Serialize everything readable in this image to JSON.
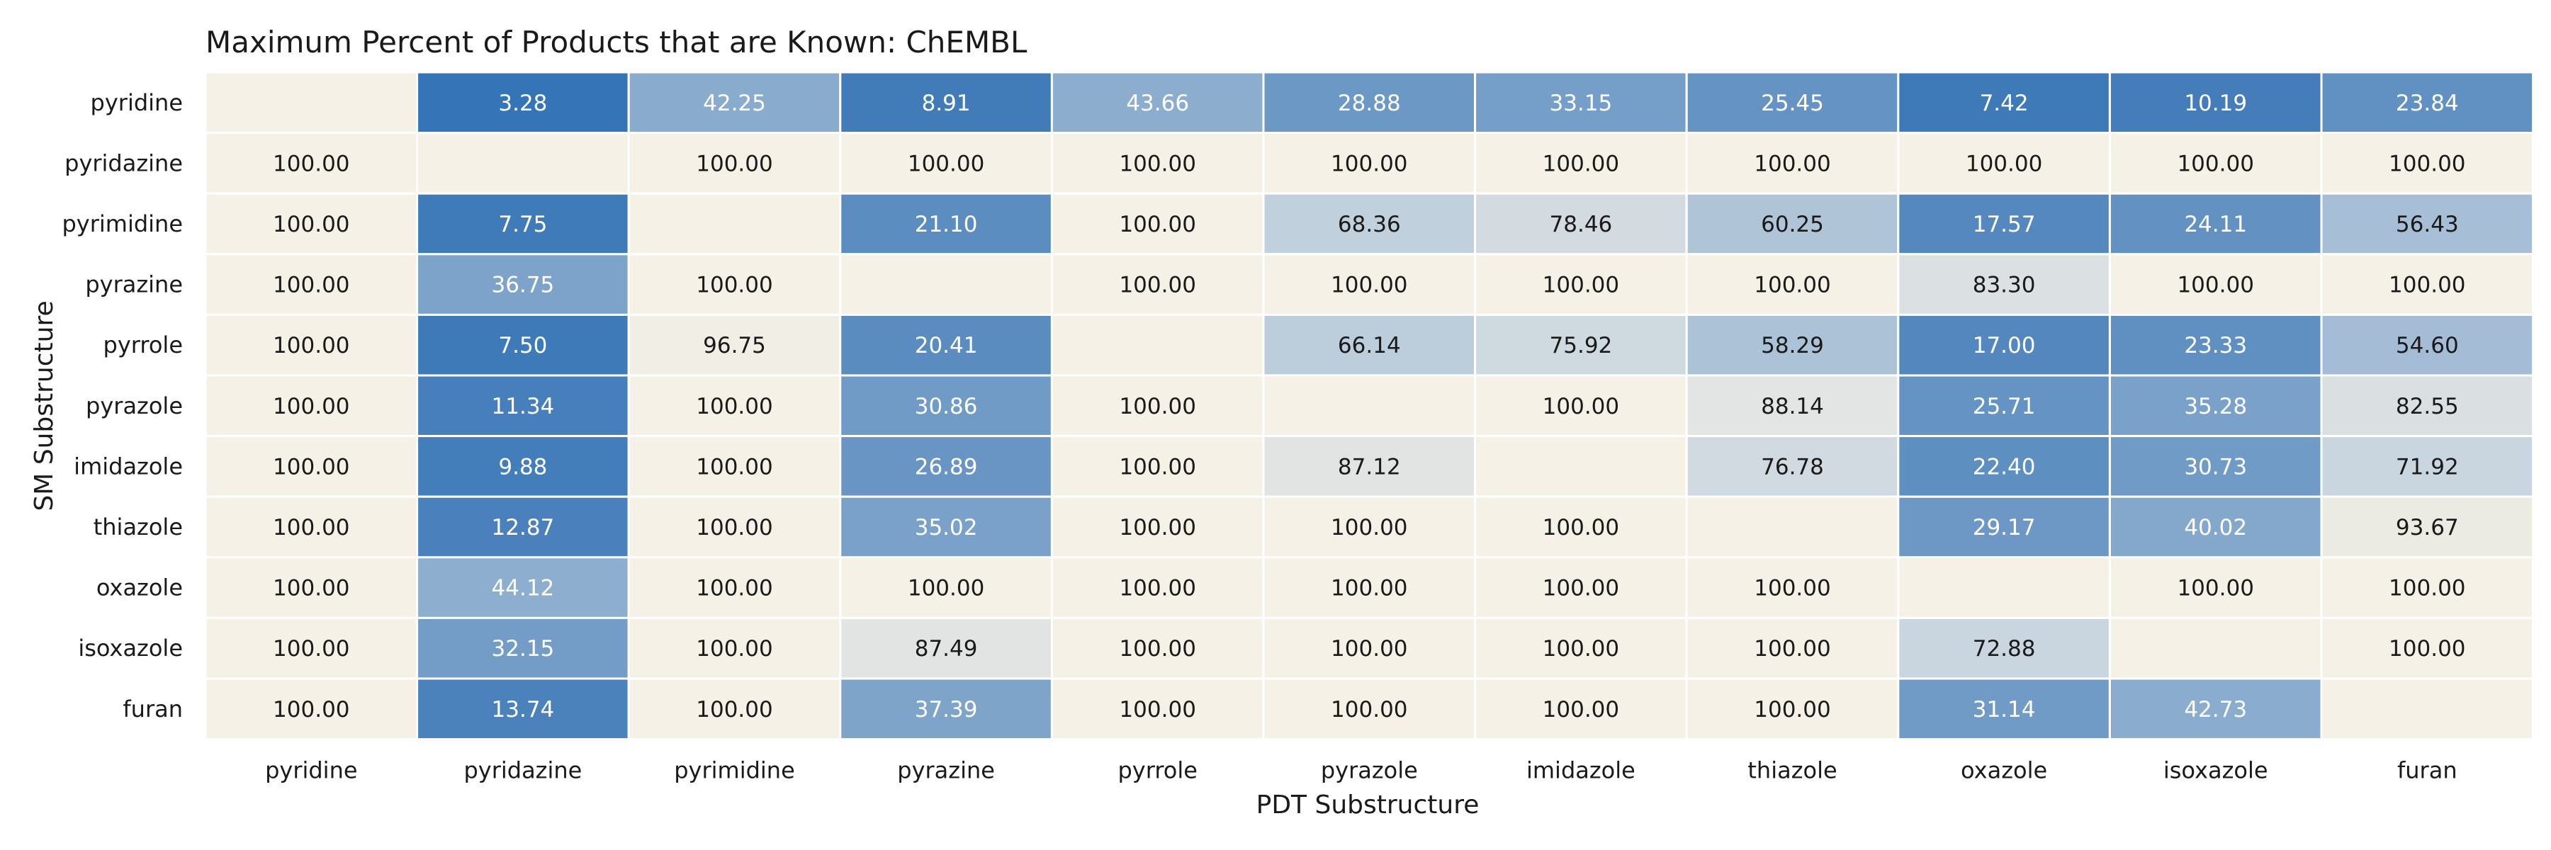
{
  "chart_data": {
    "type": "heatmap",
    "title": "Maximum Percent of Products that are Known: ChEMBL",
    "xlabel": "PDT Substructure",
    "ylabel": "SM Substructure",
    "x_categories": [
      "pyridine",
      "pyridazine",
      "pyrimidine",
      "pyrazine",
      "pyrrole",
      "pyrazole",
      "imidazole",
      "thiazole",
      "oxazole",
      "isoxazole",
      "furan"
    ],
    "y_categories": [
      "pyridine",
      "pyridazine",
      "pyrimidine",
      "pyrazine",
      "pyrrole",
      "pyrazole",
      "imidazole",
      "thiazole",
      "oxazole",
      "isoxazole",
      "furan"
    ],
    "values": [
      [
        null,
        "3.28",
        "42.25",
        "8.91",
        "43.66",
        "28.88",
        "33.15",
        "25.45",
        "7.42",
        "10.19",
        "23.84"
      ],
      [
        "100.00",
        null,
        "100.00",
        "100.00",
        "100.00",
        "100.00",
        "100.00",
        "100.00",
        "100.00",
        "100.00",
        "100.00"
      ],
      [
        "100.00",
        "7.75",
        null,
        "21.10",
        "100.00",
        "68.36",
        "78.46",
        "60.25",
        "17.57",
        "24.11",
        "56.43"
      ],
      [
        "100.00",
        "36.75",
        "100.00",
        null,
        "100.00",
        "100.00",
        "100.00",
        "100.00",
        "83.30",
        "100.00",
        "100.00"
      ],
      [
        "100.00",
        "7.50",
        "96.75",
        "20.41",
        null,
        "66.14",
        "75.92",
        "58.29",
        "17.00",
        "23.33",
        "54.60"
      ],
      [
        "100.00",
        "11.34",
        "100.00",
        "30.86",
        "100.00",
        null,
        "100.00",
        "88.14",
        "25.71",
        "35.28",
        "82.55"
      ],
      [
        "100.00",
        "9.88",
        "100.00",
        "26.89",
        "100.00",
        "87.12",
        null,
        "76.78",
        "22.40",
        "30.73",
        "71.92"
      ],
      [
        "100.00",
        "12.87",
        "100.00",
        "35.02",
        "100.00",
        "100.00",
        "100.00",
        null,
        "29.17",
        "40.02",
        "93.67"
      ],
      [
        "100.00",
        "44.12",
        "100.00",
        "100.00",
        "100.00",
        "100.00",
        "100.00",
        "100.00",
        null,
        "100.00",
        "100.00"
      ],
      [
        "100.00",
        "32.15",
        "100.00",
        "87.49",
        "100.00",
        "100.00",
        "100.00",
        "100.00",
        "72.88",
        null,
        "100.00"
      ],
      [
        "100.00",
        "13.74",
        "100.00",
        "37.39",
        "100.00",
        "100.00",
        "100.00",
        "100.00",
        "31.14",
        "42.73",
        null
      ]
    ],
    "value_range": [
      0,
      100
    ],
    "colormap": {
      "low": "#2e6fb4",
      "mid": "#c9d5df",
      "high": "#f5f1e6"
    },
    "grid_line_color": "#ffffff",
    "dark_text_color": "#1a1a1a",
    "light_text_color": "#ffffff"
  }
}
